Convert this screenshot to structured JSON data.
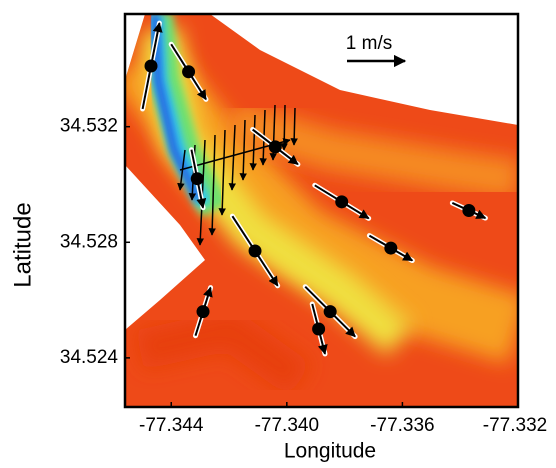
{
  "chart_data": {
    "type": "scatter",
    "xlabel": "Longitude",
    "ylabel": "Latitude",
    "xlim": [
      -77.3456,
      -77.332
    ],
    "ylim": [
      34.5223,
      34.5359
    ],
    "xticks": [
      -77.344,
      {
        "value": -77.34,
        "label": "-77.340"
      },
      -77.336,
      -77.332
    ],
    "yticks": [
      34.524,
      34.528,
      34.532
    ],
    "series": [
      {
        "color": "#000000",
        "x": [
          -77.3447,
          -77.3434,
          -77.3431,
          -77.3404,
          -77.3411,
          -77.3381,
          -77.3364,
          -77.3337,
          -77.3429,
          -77.3385,
          -77.3389
        ],
        "y": [
          34.5341,
          34.5339,
          34.5302,
          34.5313,
          34.5277,
          34.5294,
          34.5278,
          34.5291,
          34.5256,
          34.5256,
          34.525
        ],
        "u": [
          0.29,
          0.6,
          0.2,
          0.78,
          0.78,
          0.93,
          0.74,
          0.57,
          0.26,
          0.86,
          0.22
        ],
        "v": [
          1.48,
          -0.95,
          -1.0,
          -0.6,
          -1.2,
          -0.57,
          -0.43,
          -0.26,
          0.83,
          -0.86,
          -0.86
        ]
      }
    ],
    "scale_label": "1 m/s",
    "scale_value": 1
  }
}
